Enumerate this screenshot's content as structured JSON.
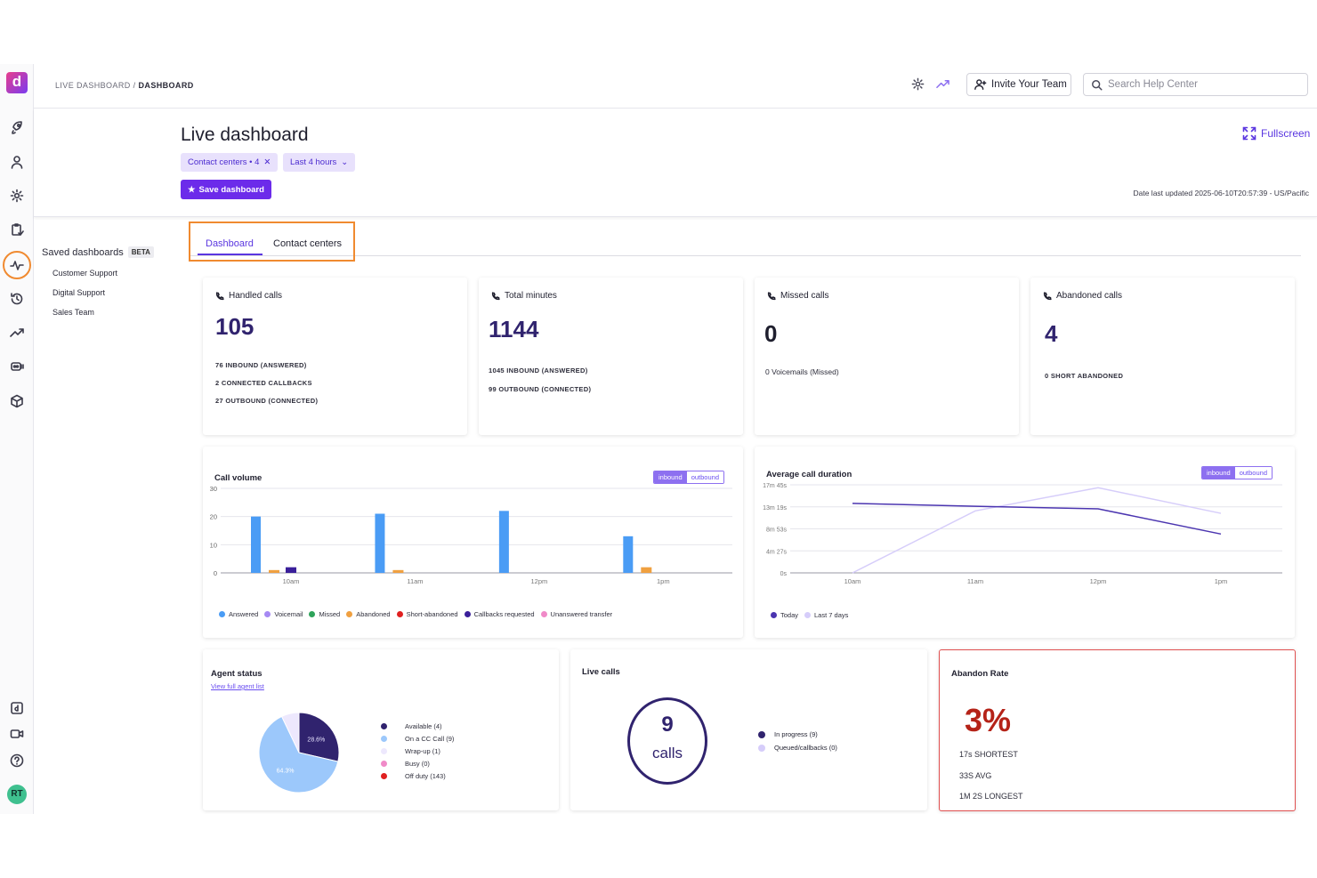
{
  "breadcrumb": {
    "parent": "LIVE DASHBOARD",
    "separator": "/",
    "current": "DASHBOARD"
  },
  "topbar": {
    "invite_label": "Invite Your Team",
    "search_placeholder": "Search Help Center"
  },
  "header": {
    "title": "Live dashboard",
    "filters": {
      "contact_centers": "Contact centers • 4",
      "time_range": "Last 4 hours"
    },
    "save_label": "Save dashboard",
    "fullscreen_label": "Fullscreen",
    "last_updated": "Date last updated 2025-06-10T20:57:39 - US/Pacific"
  },
  "saved_dashboards": {
    "title": "Saved dashboards",
    "badge": "BETA",
    "items": [
      "Customer Support",
      "Digital Support",
      "Sales Team"
    ]
  },
  "tabs": [
    {
      "label": "Dashboard",
      "active": true
    },
    {
      "label": "Contact centers",
      "active": false
    }
  ],
  "stats": {
    "handled": {
      "title": "Handled calls",
      "value": "105",
      "lines": [
        "76 INBOUND (ANSWERED)",
        "2 CONNECTED CALLBACKS",
        "27 OUTBOUND (CONNECTED)"
      ]
    },
    "minutes": {
      "title": "Total minutes",
      "value": "1144",
      "lines": [
        "1045 INBOUND (ANSWERED)",
        "99 OUTBOUND (CONNECTED)"
      ]
    },
    "missed": {
      "title": "Missed calls",
      "value": "0",
      "lines": [
        "0 Voicemails (Missed)"
      ]
    },
    "abandoned": {
      "title": "Abandoned calls",
      "value": "4",
      "lines": [
        "0 SHORT ABANDONED"
      ]
    }
  },
  "call_volume_card": {
    "title": "Call volume",
    "toggle": [
      "inbound",
      "outbound"
    ],
    "legend": [
      "Answered",
      "Voicemail",
      "Missed",
      "Abandoned",
      "Short-abandoned",
      "Callbacks requested",
      "Unanswered transfer"
    ]
  },
  "duration_card": {
    "title": "Average call duration",
    "toggle": [
      "inbound",
      "outbound"
    ],
    "legend": [
      "Today",
      "Last 7 days"
    ]
  },
  "agent_status": {
    "title": "Agent status",
    "link": "View full agent list",
    "legend": [
      "Available (4)",
      "On a CC Call (9)",
      "Wrap-up (1)",
      "Busy (0)",
      "Off duty (143)"
    ],
    "slice_labels": [
      "28.6%",
      "64.3%"
    ]
  },
  "live_calls": {
    "title": "Live calls",
    "count": "9",
    "unit": "calls",
    "legend": [
      "In progress (9)",
      "Queued/callbacks (0)"
    ]
  },
  "abandon_rate": {
    "title": "Abandon Rate",
    "value": "3%",
    "lines": [
      "17s SHORTEST",
      "33S AVG",
      "1M 2S LONGEST"
    ]
  },
  "colors": {
    "accent": "#6c2bea",
    "tab_highlight": "#f08a30",
    "answered": "#4a9cf5",
    "voicemail": "#a689f3",
    "missed": "#2ea35a",
    "abandoned": "#f0a040",
    "short_abandoned": "#e02020",
    "callbacks": "#3a1f9a",
    "unanswered_transfer": "#f08ac8",
    "today": "#4b35b0",
    "last7": "#d6cdfa"
  },
  "chart_data": [
    {
      "type": "bar",
      "title": "Call volume",
      "categories": [
        "10am",
        "11am",
        "12pm",
        "1pm"
      ],
      "ylim": [
        0,
        30
      ],
      "yticks": [
        0,
        10,
        20,
        30
      ],
      "series": [
        {
          "name": "Answered",
          "values": [
            20,
            21,
            22,
            13
          ]
        },
        {
          "name": "Abandoned",
          "values": [
            1,
            1,
            0,
            2
          ]
        },
        {
          "name": "Callbacks requested",
          "values": [
            2,
            0,
            0,
            0
          ]
        }
      ],
      "legend_position": "bottom"
    },
    {
      "type": "line",
      "title": "Average call duration",
      "x": [
        "10am",
        "11am",
        "12pm",
        "1pm"
      ],
      "yticks": [
        "0s",
        "4m 27s",
        "8m 53s",
        "13m 19s",
        "17m 45s"
      ],
      "ylim_seconds": [
        0,
        1065
      ],
      "series": [
        {
          "name": "Today",
          "values_seconds": [
            840,
            805,
            775,
            470
          ]
        },
        {
          "name": "Last 7 days",
          "values_seconds": [
            0,
            750,
            1030,
            720
          ]
        }
      ],
      "legend_position": "bottom-left"
    },
    {
      "type": "pie",
      "title": "Agent status",
      "slices": [
        {
          "name": "Available (4)",
          "value": 28.6
        },
        {
          "name": "On a CC Call (9)",
          "value": 64.3
        },
        {
          "name": "Wrap-up (1)",
          "value": 7.1
        }
      ]
    }
  ]
}
